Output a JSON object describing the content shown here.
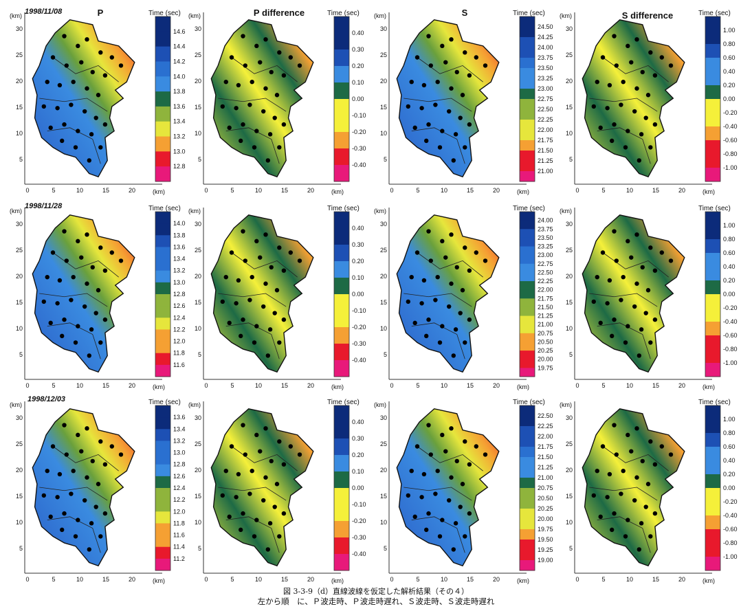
{
  "column_titles": [
    "P",
    "P difference",
    "S",
    "S difference"
  ],
  "dates": [
    "1998/11/08",
    "1998/11/28",
    "1998/12/03"
  ],
  "colorbar_title": "Time (sec)",
  "axis_unit": "(km)",
  "x_ticks": [
    "0",
    "5",
    "10",
    "15",
    "20"
  ],
  "y_ticks": [
    "5",
    "10",
    "15",
    "20",
    "25",
    "30"
  ],
  "caption": {
    "line1": "図 3-3-9（d）直線波線を仮定した解析結果（その４）",
    "line2": "左から順　に、Ｐ波走時、Ｐ波走時遅れ、Ｓ波走時、Ｓ波走時遅れ"
  },
  "chart_data": [
    {
      "type": "heatmap",
      "date": "1998/11/08",
      "title": "P",
      "colorbar_label": "Time (sec)",
      "ticks": [
        "14.6",
        "14.4",
        "14.2",
        "14.0",
        "13.8",
        "13.6",
        "13.4",
        "13.2",
        "13.0",
        "12.8"
      ]
    },
    {
      "type": "heatmap",
      "date": "1998/11/08",
      "title": "P difference",
      "colorbar_label": "Time (sec)",
      "ticks": [
        "0.40",
        "0.30",
        "0.20",
        "0.10",
        "0.00",
        "-0.10",
        "-0.20",
        "-0.30",
        "-0.40"
      ]
    },
    {
      "type": "heatmap",
      "date": "1998/11/08",
      "title": "S",
      "colorbar_label": "Time (sec)",
      "ticks": [
        "24.50",
        "24.25",
        "24.00",
        "23.75",
        "23.50",
        "23.25",
        "23.00",
        "22.75",
        "22.50",
        "22.25",
        "22.00",
        "21.75",
        "21.50",
        "21.25",
        "21.00"
      ]
    },
    {
      "type": "heatmap",
      "date": "1998/11/08",
      "title": "S difference",
      "colorbar_label": "Time (sec)",
      "ticks": [
        "1.00",
        "0.80",
        "0.60",
        "0.40",
        "0.20",
        "0.00",
        "-0.20",
        "-0.40",
        "-0.60",
        "-0.80",
        "-1.00"
      ]
    },
    {
      "type": "heatmap",
      "date": "1998/11/28",
      "title": "P",
      "colorbar_label": "Time (sec)",
      "ticks": [
        "14.0",
        "13.8",
        "13.6",
        "13.4",
        "13.2",
        "13.0",
        "12.8",
        "12.6",
        "12.4",
        "12.2",
        "12.0",
        "11.8",
        "11.6"
      ]
    },
    {
      "type": "heatmap",
      "date": "1998/11/28",
      "title": "P difference",
      "colorbar_label": "Time (sec)",
      "ticks": [
        "0.40",
        "0.30",
        "0.20",
        "0.10",
        "0.00",
        "-0.10",
        "-0.20",
        "-0.30",
        "-0.40"
      ]
    },
    {
      "type": "heatmap",
      "date": "1998/11/28",
      "title": "S",
      "colorbar_label": "Time (sec)",
      "ticks": [
        "24.00",
        "23.75",
        "23.50",
        "23.25",
        "23.00",
        "22.75",
        "22.50",
        "22.25",
        "22.00",
        "21.75",
        "21.50",
        "21.25",
        "21.00",
        "20.75",
        "20.50",
        "20.25",
        "20.00",
        "19.75"
      ]
    },
    {
      "type": "heatmap",
      "date": "1998/11/28",
      "title": "S difference",
      "colorbar_label": "Time (sec)",
      "ticks": [
        "1.00",
        "0.80",
        "0.60",
        "0.40",
        "0.20",
        "0.00",
        "-0.20",
        "-0.40",
        "-0.60",
        "-0.80",
        "-1.00"
      ]
    },
    {
      "type": "heatmap",
      "date": "1998/12/03",
      "title": "P",
      "colorbar_label": "Time (sec)",
      "ticks": [
        "13.6",
        "13.4",
        "13.2",
        "13.0",
        "12.8",
        "12.6",
        "12.4",
        "12.2",
        "12.0",
        "11.8",
        "11.6",
        "11.4",
        "11.2"
      ]
    },
    {
      "type": "heatmap",
      "date": "1998/12/03",
      "title": "P difference",
      "colorbar_label": "Time (sec)",
      "ticks": [
        "0.40",
        "0.30",
        "0.20",
        "0.10",
        "0.00",
        "-0.10",
        "-0.20",
        "-0.30",
        "-0.40"
      ]
    },
    {
      "type": "heatmap",
      "date": "1998/12/03",
      "title": "S",
      "colorbar_label": "Time (sec)",
      "ticks": [
        "22.50",
        "22.25",
        "22.00",
        "21.75",
        "21.50",
        "21.25",
        "21.00",
        "20.75",
        "20.50",
        "20.25",
        "20.00",
        "19.75",
        "19.50",
        "19.25",
        "19.00"
      ]
    },
    {
      "type": "heatmap",
      "date": "1998/12/03",
      "title": "S difference",
      "colorbar_label": "Time (sec)",
      "ticks": [
        "1.00",
        "0.80",
        "0.60",
        "0.40",
        "0.20",
        "0.00",
        "-0.20",
        "-0.40",
        "-0.60",
        "-0.80",
        "-1.00"
      ]
    }
  ]
}
